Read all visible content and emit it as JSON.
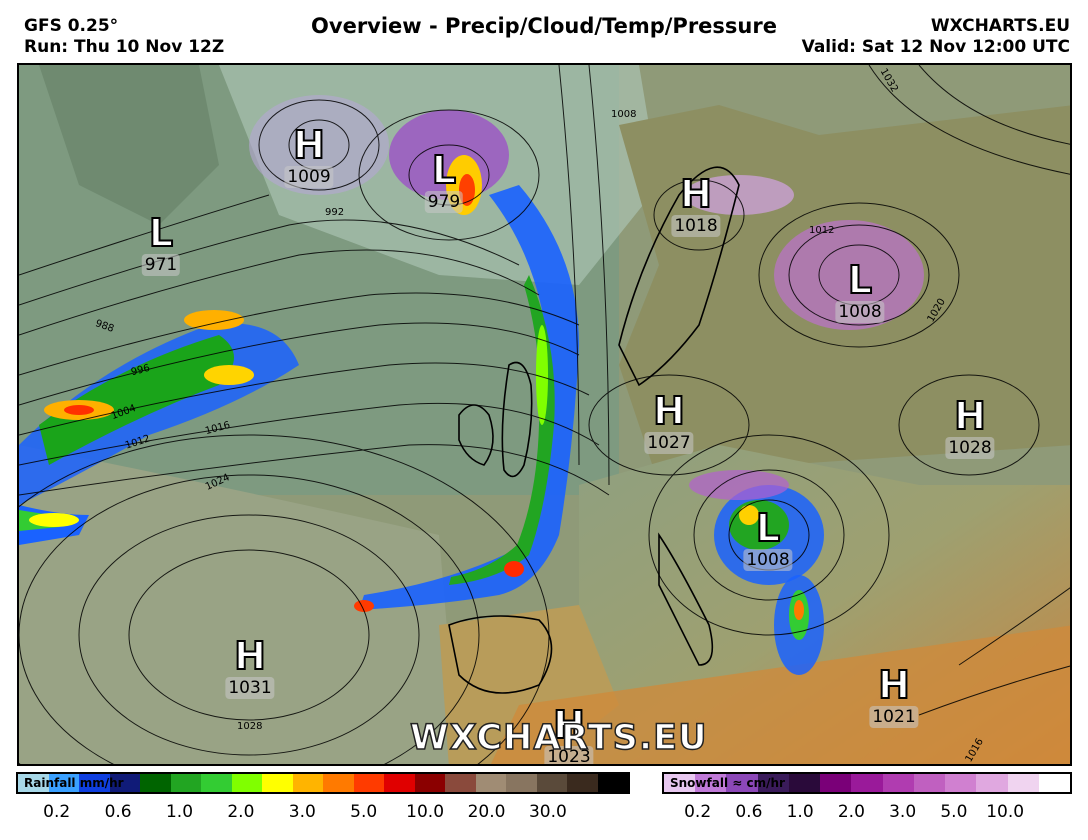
{
  "header": {
    "model": "GFS 0.25°",
    "run": "Run: Thu 10 Nov 12Z",
    "title": "Overview - Precip/Cloud/Temp/Pressure",
    "site": "WXCHARTS.EU",
    "valid": "Valid: Sat 12 Nov 12:00 UTC"
  },
  "pressure_systems": [
    {
      "type": "H",
      "value": "1009"
    },
    {
      "type": "L",
      "value": "979"
    },
    {
      "type": "L",
      "value": "971"
    },
    {
      "type": "H",
      "value": "1018"
    },
    {
      "type": "L",
      "value": "1008"
    },
    {
      "type": "H",
      "value": "1027"
    },
    {
      "type": "H",
      "value": "1028"
    },
    {
      "type": "L",
      "value": "1008"
    },
    {
      "type": "H",
      "value": "1031"
    },
    {
      "type": "H",
      "value": "1021"
    },
    {
      "type": "H",
      "value": "1023"
    }
  ],
  "isobar_labels": [
    "1008",
    "992",
    "988",
    "996",
    "1004",
    "1012",
    "1016",
    "1024",
    "1028",
    "1032",
    "1020",
    "1012",
    "1016"
  ],
  "watermark": "WXCHARTS.EU",
  "rainfall_legend": {
    "title": "Rainfall mm/hr",
    "colors": [
      "#a7d8e8",
      "#3aa0ff",
      "#0f3fe0",
      "#101b78",
      "#006400",
      "#22a522",
      "#33cc33",
      "#80ff00",
      "#ffff00",
      "#ffb400",
      "#ff7a00",
      "#ff3b00",
      "#e00000",
      "#8b0000",
      "#8a4a3c",
      "#a08c74",
      "#887560",
      "#5a4a3a",
      "#3a2a1e",
      "#000000"
    ],
    "ticks": [
      "0.2",
      "0.6",
      "1.0",
      "2.0",
      "3.0",
      "5.0",
      "10.0",
      "20.0",
      "30.0"
    ]
  },
  "snowfall_legend": {
    "title": "Snowfall ≈ cm/hr",
    "colors": [
      "#e8c8f0",
      "#c07ad8",
      "#8c48b8",
      "#3a1b5a",
      "#2a0a3a",
      "#7a0078",
      "#9a1a9a",
      "#b03cb0",
      "#c060c0",
      "#d080d0",
      "#e0a8e0",
      "#f0d4f0",
      "#ffffff"
    ],
    "ticks": [
      "0.2",
      "0.6",
      "1.0",
      "2.0",
      "3.0",
      "5.0",
      "10.0"
    ]
  }
}
